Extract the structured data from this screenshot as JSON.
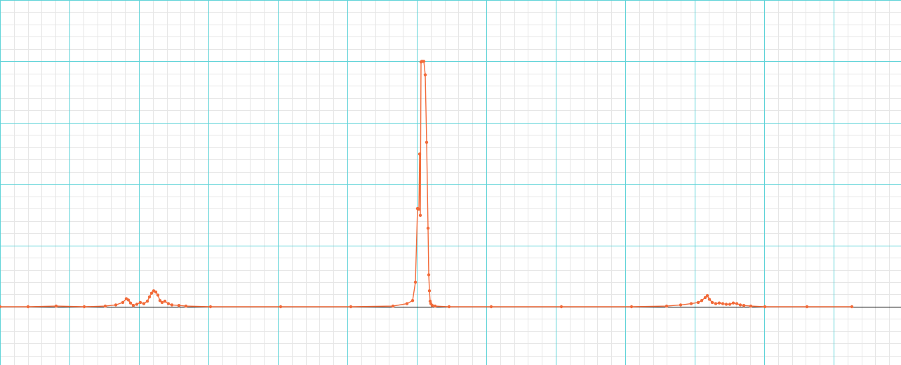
{
  "chart_data": {
    "type": "line",
    "title": "",
    "xlabel": "",
    "ylabel": "",
    "grid": true,
    "legend": "none",
    "colors": {
      "series": "#f26b3a",
      "major_grid": "#5fd3d8",
      "minor_grid": "#e6e6e6",
      "baseline": "#000000"
    },
    "xlim": [
      0,
      1284
    ],
    "ylim": [
      -0.95,
      5.0
    ],
    "series": [
      {
        "x": [
          0,
          40,
          80,
          120,
          150,
          165,
          175,
          180,
          183,
          186,
          190,
          195,
          200,
          205,
          210,
          213,
          216,
          219,
          222,
          225,
          228,
          231,
          235,
          240,
          245,
          255,
          265,
          300,
          400,
          500,
          560,
          580,
          588,
          592,
          595,
          597,
          598,
          599,
          600,
          601,
          602,
          604,
          606,
          608,
          610,
          611,
          612,
          613,
          614,
          616,
          620,
          640,
          700,
          800,
          900,
          950,
          970,
          985,
          995,
          1000,
          1005,
          1008,
          1011,
          1015,
          1020,
          1025,
          1030,
          1035,
          1040,
          1045,
          1050,
          1055,
          1060,
          1070,
          1090,
          1150,
          1214
        ],
        "values": [
          0.0,
          0.0,
          0.01,
          0.0,
          0.01,
          0.03,
          0.07,
          0.13,
          0.11,
          0.06,
          0.02,
          0.04,
          0.07,
          0.05,
          0.09,
          0.16,
          0.22,
          0.26,
          0.24,
          0.19,
          0.1,
          0.07,
          0.09,
          0.05,
          0.03,
          0.02,
          0.01,
          0.0,
          0.0,
          0.0,
          0.01,
          0.05,
          0.1,
          0.4,
          1.6,
          1.59,
          2.49,
          1.49,
          3.99,
          4.0,
          4.0,
          4.0,
          3.78,
          2.68,
          1.28,
          0.52,
          0.26,
          0.09,
          0.05,
          0.02,
          0.01,
          0.0,
          0.0,
          0.0,
          0.0,
          0.01,
          0.03,
          0.05,
          0.07,
          0.1,
          0.15,
          0.18,
          0.12,
          0.07,
          0.05,
          0.06,
          0.05,
          0.04,
          0.04,
          0.06,
          0.05,
          0.03,
          0.02,
          0.01,
          0.0,
          0.0,
          0.0
        ]
      }
    ]
  }
}
